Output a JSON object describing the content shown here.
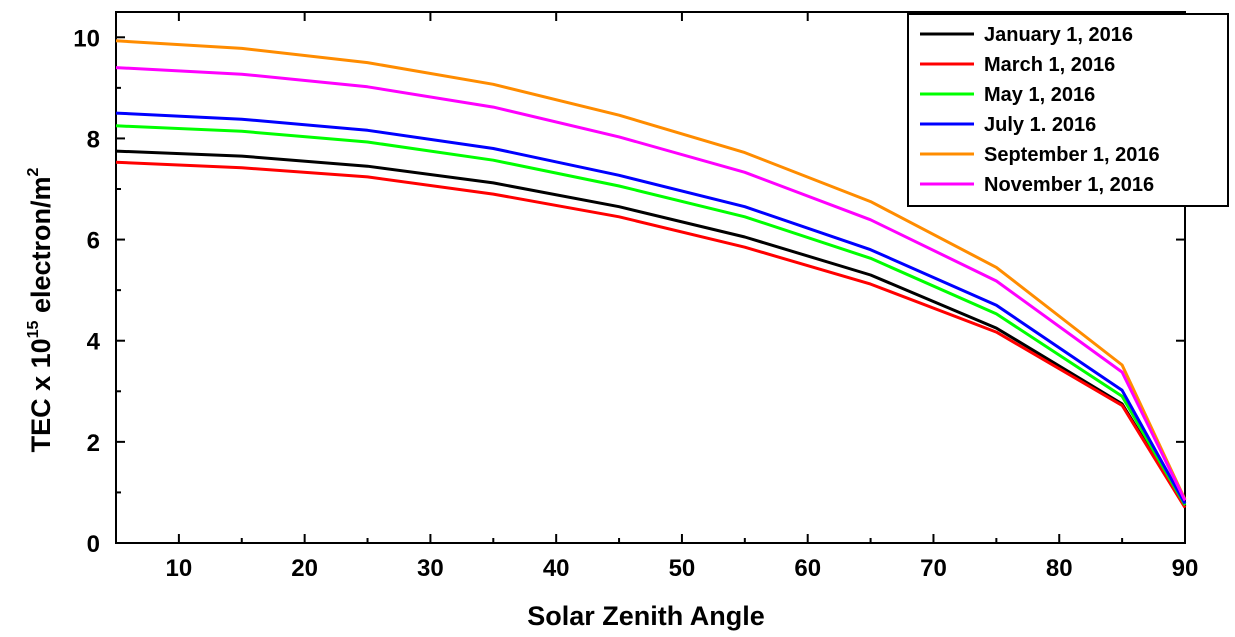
{
  "chart_data": {
    "type": "line",
    "title": "",
    "xlabel": "Solar Zenith Angle",
    "ylabel": {
      "prefix": "TEC x 10",
      "exponent": "15",
      "unit": " electron/m",
      "unit_exponent": "2"
    },
    "xlim": [
      5,
      90
    ],
    "ylim": [
      0,
      10.5
    ],
    "xticks": [
      10,
      20,
      30,
      40,
      50,
      60,
      70,
      80,
      90
    ],
    "yticks": [
      0,
      2,
      4,
      6,
      8,
      10
    ],
    "grid": false,
    "legend": "top-right",
    "x": [
      5,
      15,
      25,
      35,
      45,
      55,
      65,
      75,
      85,
      90
    ],
    "series": [
      {
        "name": "January 1, 2016",
        "color": "#000000",
        "values": [
          7.75,
          7.65,
          7.45,
          7.12,
          6.65,
          6.05,
          5.3,
          4.25,
          2.75,
          0.72
        ]
      },
      {
        "name": "March 1, 2016",
        "color": "#ff0000",
        "values": [
          7.53,
          7.42,
          7.24,
          6.9,
          6.45,
          5.85,
          5.12,
          4.17,
          2.72,
          0.7
        ]
      },
      {
        "name": "May 1, 2016",
        "color": "#00ff00",
        "values": [
          8.25,
          8.14,
          7.93,
          7.57,
          7.06,
          6.45,
          5.63,
          4.53,
          2.9,
          0.75
        ]
      },
      {
        "name": "July 1. 2016",
        "color": "#0000ff",
        "values": [
          8.5,
          8.38,
          8.16,
          7.8,
          7.27,
          6.65,
          5.8,
          4.7,
          3.02,
          0.78
        ]
      },
      {
        "name": "September 1, 2016",
        "color": "#ff8c00",
        "values": [
          9.93,
          9.78,
          9.5,
          9.07,
          8.46,
          7.72,
          6.75,
          5.45,
          3.52,
          0.86
        ]
      },
      {
        "name": "November 1, 2016",
        "color": "#ff00ff",
        "values": [
          9.4,
          9.27,
          9.02,
          8.62,
          8.03,
          7.33,
          6.39,
          5.18,
          3.38,
          0.84
        ]
      }
    ]
  }
}
